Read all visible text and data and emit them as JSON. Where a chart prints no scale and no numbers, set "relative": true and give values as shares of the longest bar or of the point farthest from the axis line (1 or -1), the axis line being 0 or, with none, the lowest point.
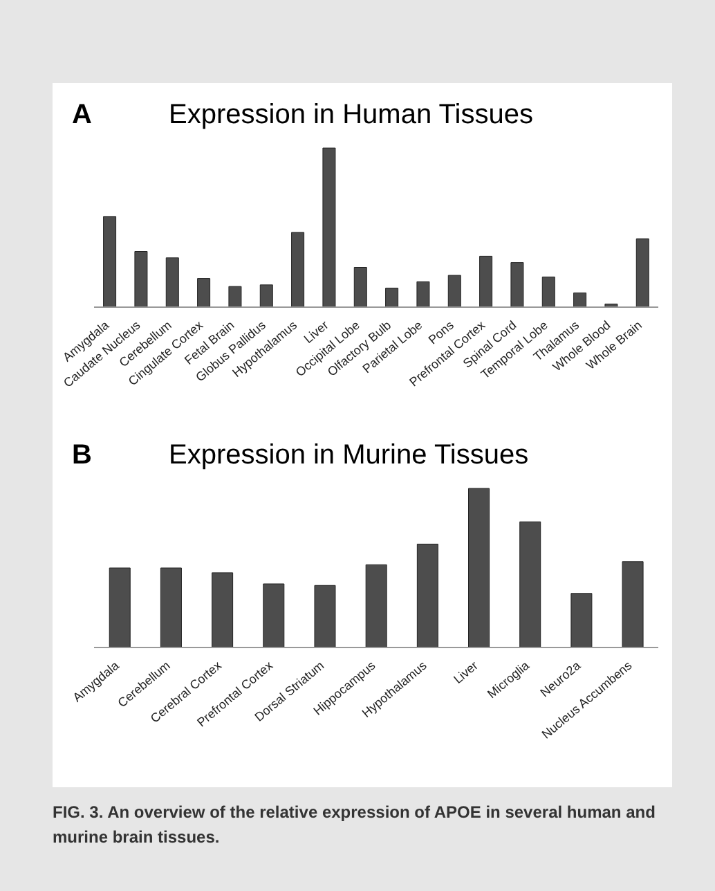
{
  "chart_data": [
    {
      "type": "bar",
      "title": "Expression in Human Tissues",
      "relative": true,
      "color": "#4d4d4d",
      "annotations": [
        "A"
      ],
      "categories": [
        "Amygdala",
        "Caudate Nucleus",
        "Cerebellum",
        "Cingulate Cortex",
        "Fetal Brain",
        "Globus Pallidus",
        "Hypothalamus",
        "Liver",
        "Occipital Lobe",
        "Olfactory Bulb",
        "Parietal Lobe",
        "Pons",
        "Prefrontal Cortex",
        "Spinal Cord",
        "Temporal Lobe",
        "Thalamus",
        "Whole Blood",
        "Whole Brain"
      ],
      "values": [
        0.57,
        0.35,
        0.31,
        0.18,
        0.13,
        0.14,
        0.47,
        1,
        0.25,
        0.12,
        0.16,
        0.2,
        0.32,
        0.28,
        0.19,
        0.09,
        0.02,
        0.43
      ]
    },
    {
      "type": "bar",
      "title": "Expression in Murine Tissues",
      "relative": true,
      "color": "#4d4d4d",
      "annotations": [
        "B",
        "FIG. 3. An overview of the relative expression of APOE in several human and murine brain tissues."
      ],
      "categories": [
        "Amygdala",
        "Cerebellum",
        "Cerebral Cortex",
        "Prefrontal Cortex",
        "Dorsal Striatum",
        "Hippocampus",
        "Hypothalamus",
        "Liver",
        "Microglia",
        "Neuro2a",
        "Nucleus Accumbens"
      ],
      "values": [
        0.5,
        0.5,
        0.47,
        0.4,
        0.39,
        0.52,
        0.65,
        1,
        0.79,
        0.34,
        0.54
      ]
    }
  ]
}
